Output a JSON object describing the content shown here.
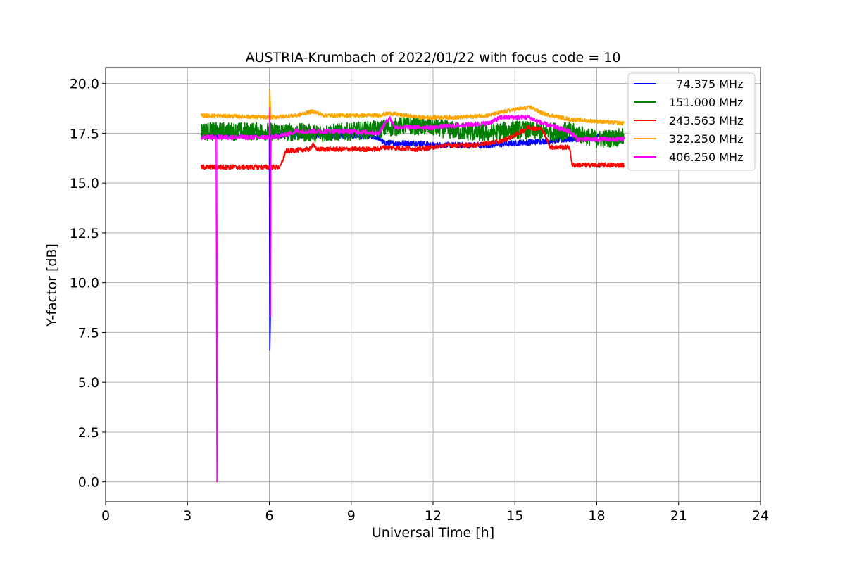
{
  "chart_data": {
    "type": "line",
    "title": "AUSTRIA-Krumbach of 2022/01/22 with focus code = 10",
    "xlabel": "Universal Time [h]",
    "ylabel": "Y-factor [dB]",
    "xlim": [
      0,
      24
    ],
    "ylim": [
      -1.0,
      20.8
    ],
    "xticks": [
      0,
      3,
      6,
      9,
      12,
      15,
      18,
      21,
      24
    ],
    "xtick_labels": [
      "0",
      "3",
      "6",
      "9",
      "12",
      "15",
      "18",
      "21",
      "24"
    ],
    "yticks": [
      0.0,
      2.5,
      5.0,
      7.5,
      10.0,
      12.5,
      15.0,
      17.5,
      20.0
    ],
    "ytick_labels": [
      "0.0",
      "2.5",
      "5.0",
      "7.5",
      "10.0",
      "12.5",
      "15.0",
      "17.5",
      "20.0"
    ],
    "grid": true,
    "legend_position": "top-right",
    "series": [
      {
        "name": "  74.375 MHz",
        "color": "#0000ff",
        "noise": 0.15,
        "points": [
          [
            3.5,
            17.4
          ],
          [
            6.0,
            17.4
          ],
          [
            6.02,
            6.6
          ],
          [
            6.04,
            8.4
          ],
          [
            6.06,
            17.4
          ],
          [
            9.0,
            17.4
          ],
          [
            10.0,
            17.3
          ],
          [
            10.2,
            17.0
          ],
          [
            11.5,
            17.0
          ],
          [
            12.0,
            16.9
          ],
          [
            14.0,
            16.9
          ],
          [
            15.0,
            17.0
          ],
          [
            16.0,
            17.1
          ],
          [
            17.0,
            17.2
          ],
          [
            18.0,
            17.3
          ],
          [
            19.0,
            17.3
          ]
        ]
      },
      {
        "name": "151.000 MHz",
        "color": "#008000",
        "noise": 0.45,
        "points": [
          [
            3.5,
            17.6
          ],
          [
            6.0,
            17.6
          ],
          [
            8.0,
            17.5
          ],
          [
            10.0,
            17.7
          ],
          [
            11.0,
            17.9
          ],
          [
            12.0,
            17.8
          ],
          [
            13.0,
            17.6
          ],
          [
            14.0,
            17.5
          ],
          [
            15.0,
            17.7
          ],
          [
            16.0,
            17.6
          ],
          [
            17.0,
            17.6
          ],
          [
            18.0,
            17.2
          ],
          [
            19.0,
            17.3
          ]
        ]
      },
      {
        "name": "243.563 MHz",
        "color": "#ff0000",
        "noise": 0.12,
        "points": [
          [
            3.5,
            15.8
          ],
          [
            6.4,
            15.8
          ],
          [
            6.6,
            16.6
          ],
          [
            7.5,
            16.7
          ],
          [
            7.6,
            17.0
          ],
          [
            7.7,
            16.7
          ],
          [
            10.0,
            16.7
          ],
          [
            10.2,
            16.8
          ],
          [
            11.5,
            16.7
          ],
          [
            12.0,
            16.8
          ],
          [
            12.5,
            16.9
          ],
          [
            13.5,
            16.9
          ],
          [
            14.5,
            17.1
          ],
          [
            15.0,
            17.4
          ],
          [
            15.5,
            17.8
          ],
          [
            16.0,
            17.7
          ],
          [
            16.3,
            16.8
          ],
          [
            17.0,
            16.8
          ],
          [
            17.1,
            15.9
          ],
          [
            19.0,
            15.9
          ]
        ]
      },
      {
        "name": "322.250 MHz",
        "color": "#ffa500",
        "noise": 0.1,
        "points": [
          [
            3.5,
            18.4
          ],
          [
            6.0,
            18.3
          ],
          [
            6.02,
            19.7
          ],
          [
            6.05,
            18.3
          ],
          [
            7.0,
            18.4
          ],
          [
            7.6,
            18.6
          ],
          [
            8.0,
            18.4
          ],
          [
            10.0,
            18.4
          ],
          [
            10.4,
            18.5
          ],
          [
            11.5,
            18.3
          ],
          [
            13.0,
            18.3
          ],
          [
            14.0,
            18.4
          ],
          [
            15.0,
            18.7
          ],
          [
            15.6,
            18.8
          ],
          [
            16.0,
            18.5
          ],
          [
            17.0,
            18.2
          ],
          [
            19.0,
            18.0
          ]
        ]
      },
      {
        "name": "406.250 MHz",
        "color": "#ff00ff",
        "noise": 0.12,
        "points": [
          [
            3.5,
            17.3
          ],
          [
            4.05,
            17.3
          ],
          [
            4.08,
            0.0
          ],
          [
            4.11,
            17.3
          ],
          [
            6.0,
            17.3
          ],
          [
            6.02,
            18.8
          ],
          [
            6.04,
            8.3
          ],
          [
            6.06,
            17.3
          ],
          [
            6.5,
            17.4
          ],
          [
            7.0,
            17.6
          ],
          [
            9.0,
            17.6
          ],
          [
            10.0,
            17.5
          ],
          [
            10.4,
            18.3
          ],
          [
            10.6,
            17.8
          ],
          [
            12.0,
            17.8
          ],
          [
            14.0,
            18.0
          ],
          [
            14.5,
            18.3
          ],
          [
            15.5,
            18.3
          ],
          [
            16.0,
            18.0
          ],
          [
            17.0,
            17.6
          ],
          [
            17.3,
            17.2
          ],
          [
            19.0,
            17.2
          ]
        ]
      }
    ]
  }
}
